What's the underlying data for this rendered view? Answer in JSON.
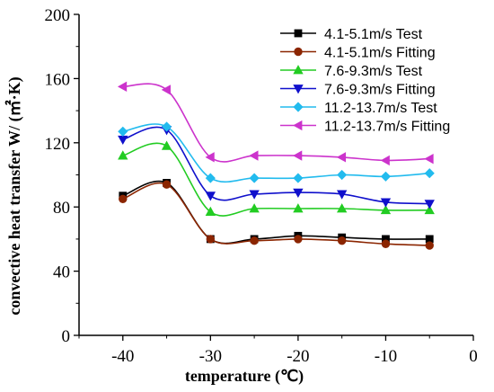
{
  "chart_data": {
    "type": "line",
    "xlabel": "temperature (℃)",
    "ylabel": "convective heat transfer  W/ (㎡·K)",
    "xlim": [
      -45,
      0
    ],
    "ylim": [
      0,
      200
    ],
    "xticks": [
      -40,
      -30,
      -20,
      -10,
      0
    ],
    "yticks": [
      0,
      40,
      80,
      120,
      160,
      200
    ],
    "legend_position": "top-right",
    "x": [
      -40,
      -35,
      -30,
      -25,
      -20,
      -15,
      -10,
      -5
    ],
    "series": [
      {
        "name": "4.1-5.1m/s Test",
        "color": "#000000",
        "marker": "square",
        "values": [
          87,
          95,
          60,
          60,
          62,
          61,
          60,
          60
        ]
      },
      {
        "name": "4.1-5.1m/s Fitting",
        "color": "#8B2500",
        "marker": "circle",
        "fitted": true,
        "values": [
          85,
          94,
          60,
          59,
          60,
          59,
          57,
          56
        ]
      },
      {
        "name": "7.6-9.3m/s Test",
        "color": "#22cc22",
        "marker": "triangle-up",
        "values": [
          112,
          118,
          77,
          79,
          79,
          79,
          78,
          78
        ]
      },
      {
        "name": "7.6-9.3m/s Fitting",
        "color": "#1010cc",
        "marker": "triangle-down",
        "fitted": true,
        "values": [
          122,
          128,
          87,
          88,
          89,
          88,
          83,
          82
        ]
      },
      {
        "name": "11.2-13.7m/s Test",
        "color": "#22bbee",
        "marker": "diamond",
        "values": [
          127,
          130,
          98,
          98,
          98,
          100,
          99,
          101
        ]
      },
      {
        "name": "11.2-13.7m/s Fitting",
        "color": "#cc33cc",
        "marker": "triangle-left",
        "fitted": true,
        "values": [
          155,
          153,
          111,
          112,
          112,
          111,
          109,
          110
        ]
      }
    ]
  }
}
